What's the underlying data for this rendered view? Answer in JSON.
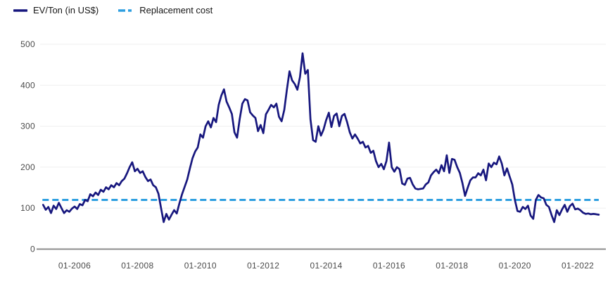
{
  "legend": {
    "items": [
      {
        "label": "EV/Ton (in US$)",
        "color": "#17177E",
        "style": "solid"
      },
      {
        "label": "Replacement cost",
        "color": "#2E9FE0",
        "style": "dashed"
      }
    ]
  },
  "colors": {
    "series_line": "#17177E",
    "replacement_line": "#2E9FE0",
    "grid": "#EFEFEF",
    "axis": "#8C8C8C",
    "tick_label": "#4A4A4A",
    "background": "#FFFFFF"
  },
  "chart_data": {
    "type": "line",
    "title": "",
    "xlabel": "",
    "ylabel": "",
    "x_start": "01-2005",
    "x_frequency": "monthly",
    "x_ticks": [
      "01-2006",
      "01-2008",
      "01-2010",
      "01-2012",
      "01-2014",
      "01-2016",
      "01-2018",
      "01-2020",
      "01-2022"
    ],
    "y_ticks": [
      0,
      100,
      200,
      300,
      400,
      500
    ],
    "ylim": [
      0,
      500
    ],
    "grid": true,
    "legend_position": "top-left",
    "series": [
      {
        "name": "EV/Ton (in US$)",
        "color": "#17177E",
        "values": [
          108,
          96,
          103,
          88,
          106,
          98,
          113,
          100,
          88,
          95,
          91,
          99,
          104,
          98,
          110,
          107,
          120,
          117,
          134,
          129,
          138,
          132,
          145,
          140,
          151,
          146,
          156,
          151,
          161,
          156,
          166,
          172,
          185,
          200,
          212,
          190,
          196,
          186,
          190,
          176,
          166,
          170,
          156,
          151,
          135,
          100,
          66,
          86,
          72,
          84,
          95,
          87,
          112,
          134,
          152,
          170,
          197,
          222,
          238,
          248,
          280,
          272,
          300,
          312,
          297,
          320,
          310,
          352,
          375,
          390,
          360,
          346,
          330,
          285,
          272,
          317,
          355,
          366,
          363,
          334,
          326,
          320,
          288,
          303,
          283,
          329,
          340,
          352,
          346,
          355,
          323,
          312,
          340,
          389,
          434,
          412,
          403,
          389,
          420,
          478,
          428,
          437,
          317,
          266,
          262,
          300,
          277,
          292,
          315,
          333,
          298,
          325,
          331,
          300,
          325,
          330,
          310,
          285,
          270,
          280,
          270,
          258,
          262,
          248,
          252,
          235,
          240,
          215,
          200,
          208,
          195,
          215,
          260,
          200,
          189,
          200,
          195,
          160,
          157,
          172,
          174,
          158,
          148,
          146,
          147,
          148,
          158,
          163,
          180,
          188,
          194,
          185,
          205,
          190,
          229,
          186,
          220,
          218,
          200,
          186,
          161,
          130,
          150,
          168,
          175,
          175,
          185,
          180,
          194,
          168,
          209,
          200,
          211,
          207,
          226,
          209,
          180,
          197,
          177,
          158,
          120,
          93,
          91,
          103,
          98,
          106,
          82,
          74,
          120,
          132,
          126,
          124,
          108,
          103,
          83,
          66,
          95,
          83,
          97,
          108,
          91,
          105,
          111,
          97,
          99,
          95,
          89,
          86,
          87,
          85,
          86,
          85,
          84
        ]
      }
    ],
    "replacement_cost": {
      "name": "Replacement cost",
      "value": 120,
      "color": "#2E9FE0",
      "style": "dashed"
    }
  }
}
